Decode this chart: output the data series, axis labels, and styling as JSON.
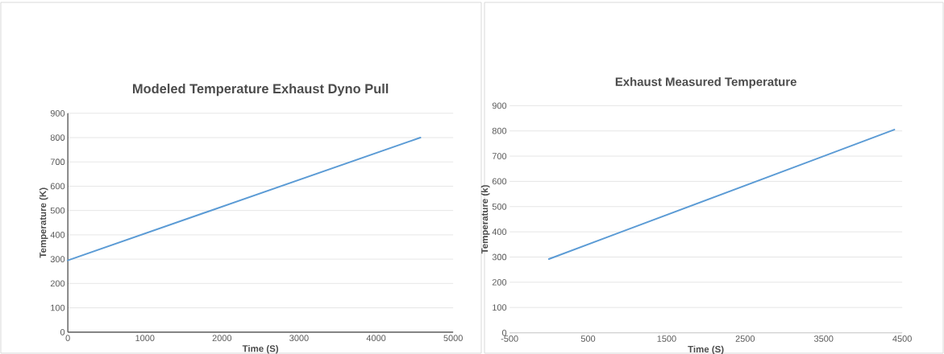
{
  "chart_data": [
    {
      "type": "line",
      "title": "Modeled Temperature Exhaust Dyno Pull",
      "xlabel": "Time (S)",
      "ylabel": "Temperature (K)",
      "x": [
        0,
        4575
      ],
      "values": [
        295,
        800
      ],
      "color": "#5b9bd5",
      "xlim": [
        0,
        5000
      ],
      "ylim": [
        0,
        900
      ],
      "xticks": [
        0,
        1000,
        2000,
        3000,
        4000,
        5000
      ],
      "yticks": [
        0,
        100,
        200,
        300,
        400,
        500,
        600,
        700,
        800,
        900
      ],
      "grid": "y"
    },
    {
      "type": "line",
      "title": "Exhaust Measured Temperature",
      "xlabel": "Time (S)",
      "ylabel": "Temperature (k)",
      "x": [
        0,
        4400
      ],
      "values": [
        292,
        805
      ],
      "color": "#5b9bd5",
      "xlim": [
        -500,
        4500
      ],
      "ylim": [
        0,
        900
      ],
      "xticks": [
        -500,
        500,
        1500,
        2500,
        3500,
        4500
      ],
      "yticks": [
        0,
        100,
        200,
        300,
        400,
        500,
        600,
        700,
        800,
        900
      ],
      "grid": "y"
    }
  ]
}
